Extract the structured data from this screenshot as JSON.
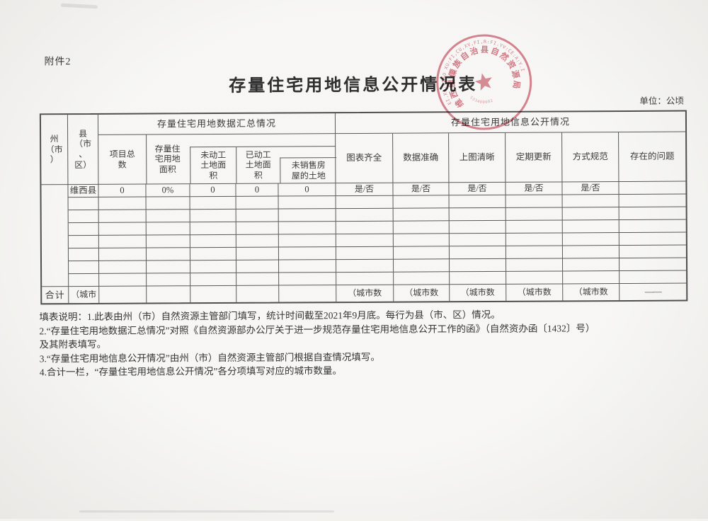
{
  "page": {
    "attachment_label": "附件2",
    "title": "存量住宅用地信息公开情况表",
    "unit_label": "单位：公顷"
  },
  "stamp": {
    "outer_ring_text": "EI.XI.LISU XU:FI,CU,XV,FI,R:FI.YV:CE:A:Y.I",
    "inner_ring_text": "维西傈僳族自治县自然资源局",
    "code_number": "533400002",
    "color": "#c4505f"
  },
  "table": {
    "header": {
      "state": "州\n（市\n）",
      "county": "县\n（市\n、\n区）",
      "group_summary": "存量住宅用地数据汇总情况",
      "group_disclosure": "存量住宅用地信息公开情况",
      "summary_cols": [
        "项目总\n数",
        "存量住\n宅用地\n面积",
        "未动工\n土地面\n积",
        "已动工\n土地面\n积",
        "未销售房\n屋的土地"
      ],
      "disclosure_cols": [
        "图表齐全",
        "数据准确",
        "上图清晰",
        "定期更新",
        "方式规范",
        "存在的问题"
      ]
    },
    "row1": {
      "county": "维西县",
      "values": [
        "0",
        "0%",
        "0",
        "0",
        "0"
      ],
      "flags": [
        "是/否",
        "是/否",
        "是/否",
        "是/否",
        "是/否"
      ],
      "problem": ""
    },
    "empty_row_count": 7,
    "total": {
      "label": "合计",
      "county_cell": "（城市",
      "flag_cells": [
        "（城市数",
        "（城市数",
        "（城市数",
        "（城市数",
        "（城市数"
      ],
      "problem_cell": "——"
    }
  },
  "notes": {
    "line1": "填表说明：1.此表由州（市）自然资源主管部门填写，统计时间截至2021年9月底。每行为县（市、区）情况。",
    "line2": "2.“存量住宅用地数据汇总情况”对照《自然资源部办公厅关于进一步规范存量住宅用地信息公开工作的函》（自然资办函〔1432〕号）",
    "line3": "及其附表填写。",
    "line4": "3.“存量住宅用地信息公开情况”由州（市）自然资源主管部门根据自查情况填写。",
    "line5": "4.合计一栏，“存量住宅用地信息公开情况”各分项填写对应的城市数量。"
  }
}
